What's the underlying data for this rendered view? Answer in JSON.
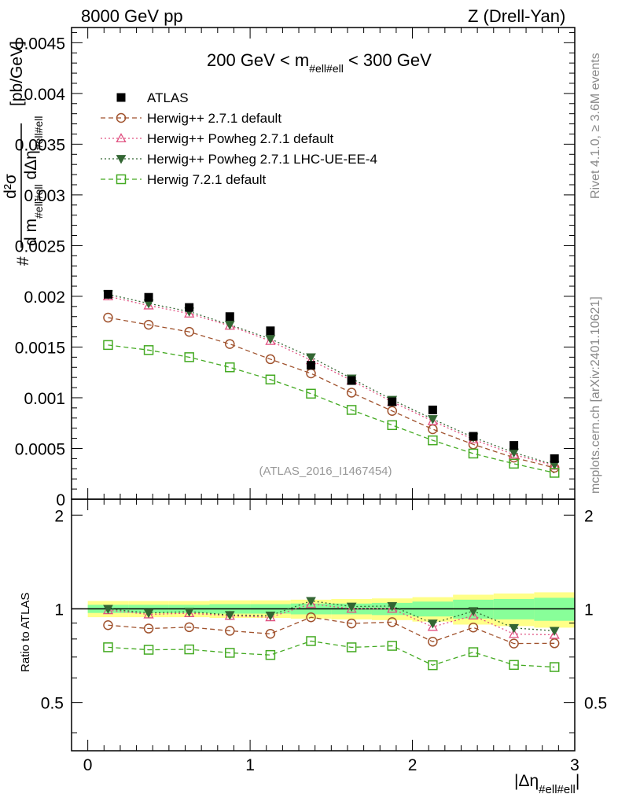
{
  "header": {
    "left": "8000 GeV pp",
    "right": "Z (Drell-Yan)"
  },
  "sidebar": {
    "rivet": "Rivet 4.1.0, ≥ 3.6M events",
    "mcplots": "mcplots.cern.ch [arXiv:2401.10621]"
  },
  "chart_data": {
    "type": "line",
    "title_pre": "200 GeV < m",
    "title_sub": "#ell#ell",
    "title_post": " < 300 GeV",
    "analysis_label": "(ATLAS_2016_I1467454)",
    "ylabel_num": "d²σ",
    "ylabel_den_d": "d m",
    "ylabel_den_sub1": "#ell#ell",
    "ylabel_den_deta": " dΔη",
    "ylabel_den_sub2": "#ell#ell",
    "ylabel_prefix": "#",
    "ylabel_units": "[pb/GeV]",
    "ratio_ylabel": "Ratio to ATLAS",
    "xlabel_main": "|Δη",
    "xlabel_sub": "#ell#ell",
    "xlabel_end": "|",
    "xlim": [
      -0.1,
      3.0
    ],
    "ylim": [
      0,
      0.00465
    ],
    "ratio_ylim": [
      0.35,
      2.25
    ],
    "yticks": [
      "0",
      "0.0005",
      "0.001",
      "0.0015",
      "0.002",
      "0.0025",
      "0.003",
      "0.0035",
      "0.004",
      "0.0045"
    ],
    "xticks": [
      "0",
      "1",
      "2",
      "3"
    ],
    "ratio_yticks": [
      "0.5",
      "1",
      "2"
    ],
    "x": [
      0.125,
      0.375,
      0.625,
      0.875,
      1.125,
      1.375,
      1.625,
      1.875,
      2.125,
      2.375,
      2.625,
      2.875
    ],
    "bin_edges": [
      0,
      0.25,
      0.5,
      0.75,
      1.0,
      1.25,
      1.5,
      1.75,
      2.0,
      2.25,
      2.5,
      2.75,
      3.0
    ],
    "data": {
      "name": "ATLAS",
      "values": [
        0.00202,
        0.00199,
        0.00189,
        0.0018,
        0.00166,
        0.00132,
        0.00117,
        0.00096,
        0.00088,
        0.00062,
        0.00053,
        0.0004
      ],
      "band_green": [
        0.03,
        0.03,
        0.03,
        0.035,
        0.035,
        0.04,
        0.04,
        0.045,
        0.055,
        0.07,
        0.075,
        0.085
      ],
      "band_yellow": [
        0.06,
        0.06,
        0.06,
        0.065,
        0.065,
        0.07,
        0.075,
        0.08,
        0.09,
        0.11,
        0.12,
        0.13
      ]
    },
    "series": [
      {
        "name": "Herwig++ 2.7.1 default",
        "color": "#a0522d",
        "marker": "circle",
        "dash": "6,4",
        "values": [
          0.00179,
          0.00172,
          0.00165,
          0.00153,
          0.00138,
          0.00124,
          0.00105,
          0.00087,
          0.00069,
          0.00054,
          0.00041,
          0.00031
        ]
      },
      {
        "name": "Herwig++ Powheg 2.7.1 default",
        "color": "#e05080",
        "marker": "triangle",
        "dash": "2,3",
        "values": [
          0.002,
          0.00191,
          0.00183,
          0.00171,
          0.00156,
          0.00137,
          0.00117,
          0.00096,
          0.00077,
          0.00059,
          0.00044,
          0.00033
        ]
      },
      {
        "name": "Herwig++ Powheg 2.7.1 LHC-UE-EE-4",
        "color": "#336633",
        "marker": "triangle-down",
        "dash": "2,3",
        "values": [
          0.00202,
          0.00193,
          0.00185,
          0.00172,
          0.00158,
          0.0014,
          0.00119,
          0.00098,
          0.00079,
          0.00061,
          0.00046,
          0.00034
        ]
      },
      {
        "name": "Herwig 7.2.1 default",
        "color": "#44aa22",
        "marker": "square",
        "dash": "6,4",
        "values": [
          0.00152,
          0.00147,
          0.0014,
          0.0013,
          0.00118,
          0.00104,
          0.00088,
          0.00073,
          0.00058,
          0.00045,
          0.00035,
          0.00026
        ]
      }
    ]
  }
}
